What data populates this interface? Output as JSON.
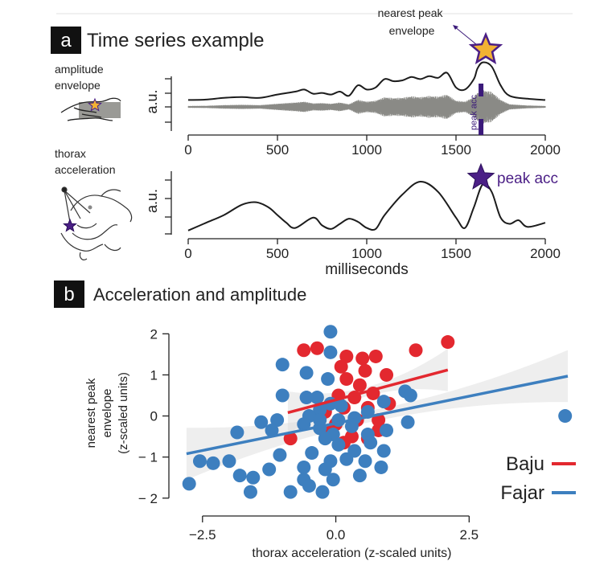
{
  "panel_a": {
    "letter": "a",
    "title": "Time series example",
    "left_label_1": "amplitude\nenvelope",
    "left_label_2": "thorax\nacceleration",
    "annotation_envelope": "nearest peak\nenvelope",
    "annotation_acc": "peak acc",
    "peak_acc_small": "peak acc",
    "ylabel_top": "a.u.",
    "ylabel_bottom": "a.u.",
    "xlabel": "milliseconds",
    "x_ticks": [
      "0",
      "500",
      "1000",
      "1500",
      "2000"
    ],
    "colors": {
      "signal": "#8a8a86",
      "envelope": "#1c1c1c",
      "acc_star": "#4b1f86",
      "env_star": "#f2b233",
      "peak_bar": "#3b1a7a"
    }
  },
  "panel_b": {
    "letter": "b",
    "title": "Acceleration and amplitude",
    "legend": [
      {
        "name": "Baju",
        "color": "#e3282f"
      },
      {
        "name": "Fajar",
        "color": "#3d7fbf"
      }
    ]
  },
  "chart_data": [
    {
      "type": "line",
      "panel": "a",
      "series": [
        {
          "name": "",
          "x": [
            0,
            100,
            200,
            300,
            400,
            500,
            600,
            650,
            700,
            750,
            800,
            850,
            900,
            950,
            1000,
            1050,
            1100,
            1150,
            1200,
            1250,
            1300,
            1350,
            1400,
            1450,
            1500,
            1550,
            1600,
            1620,
            1650,
            1700,
            1750,
            1800,
            1900,
            2000
          ],
          "y": [
            0.05,
            0.06,
            0.1,
            0.12,
            0.1,
            0.18,
            0.25,
            0.3,
            0.2,
            0.22,
            0.18,
            0.25,
            0.15,
            0.4,
            0.3,
            0.35,
            0.55,
            0.5,
            0.52,
            0.6,
            0.55,
            0.62,
            0.58,
            0.7,
            0.35,
            0.3,
            0.55,
            0.8,
            0.95,
            0.85,
            0.4,
            0.15,
            0.08,
            0.05
          ]
        }
      ],
      "xlabel": "",
      "ylabel": "a.u.",
      "xlim": [
        0,
        2000
      ],
      "x_ticks": [
        0,
        500,
        1000,
        1500,
        2000
      ]
    },
    {
      "type": "line",
      "panel": "a",
      "series": [
        {
          "name": "",
          "x": [
            0,
            100,
            200,
            300,
            380,
            450,
            500,
            550,
            600,
            700,
            750,
            800,
            850,
            900,
            950,
            1000,
            1050,
            1100,
            1200,
            1300,
            1400,
            1500,
            1550,
            1600,
            1650,
            1700,
            1750,
            1800,
            1850,
            1900,
            2000
          ],
          "y": [
            0.05,
            0.2,
            0.35,
            0.55,
            0.6,
            0.5,
            0.35,
            0.2,
            0.1,
            0.3,
            0.15,
            0.08,
            0.18,
            0.28,
            0.22,
            0.1,
            0.08,
            0.35,
            0.75,
            1.0,
            0.8,
            0.3,
            0.1,
            0.5,
            0.95,
            0.8,
            0.3,
            0.18,
            0.25,
            0.12,
            0.2
          ]
        }
      ],
      "xlabel": "milliseconds",
      "ylabel": "a.u.",
      "xlim": [
        0,
        2000
      ],
      "x_ticks": [
        0,
        500,
        1000,
        1500,
        2000
      ]
    },
    {
      "type": "scatter",
      "panel": "b",
      "xlabel": "thorax acceleration (z-scaled units)",
      "ylabel": "nearest peak\nenvelope\n(z-scaled units)",
      "xlim": [
        -3.1,
        4.35
      ],
      "ylim": [
        -2.2,
        2.3
      ],
      "x_ticks": [
        "−2.5",
        "0.0",
        "2.5"
      ],
      "x_tick_values": [
        -2.5,
        0.0,
        2.5
      ],
      "y_ticks": [
        "2",
        "1",
        "0",
        "− 1",
        "− 2"
      ],
      "y_tick_values": [
        2,
        1,
        0,
        -1,
        -2
      ],
      "series": [
        {
          "name": "Baju",
          "color": "#e3282f",
          "points": [
            [
              -0.6,
              1.6
            ],
            [
              -0.35,
              1.65
            ],
            [
              0.2,
              1.45
            ],
            [
              0.5,
              1.4
            ],
            [
              0.75,
              1.45
            ],
            [
              0.1,
              1.2
            ],
            [
              0.55,
              1.1
            ],
            [
              0.95,
              1.0
            ],
            [
              0.2,
              0.9
            ],
            [
              0.45,
              0.75
            ],
            [
              0.7,
              0.55
            ],
            [
              0.05,
              0.5
            ],
            [
              0.35,
              0.45
            ],
            [
              0.6,
              0.2
            ],
            [
              1.0,
              0.3
            ],
            [
              0.15,
              0.2
            ],
            [
              -0.2,
              0.1
            ],
            [
              0.4,
              -0.1
            ],
            [
              0.8,
              -0.35
            ],
            [
              -0.1,
              -0.4
            ],
            [
              0.3,
              -0.5
            ],
            [
              0.6,
              -0.55
            ],
            [
              0.15,
              -0.65
            ],
            [
              -0.85,
              -0.55
            ],
            [
              1.5,
              1.6
            ],
            [
              2.1,
              1.8
            ],
            [
              0.8,
              -0.1
            ],
            [
              0.0,
              -0.2
            ]
          ],
          "fit": {
            "x": [
              -0.9,
              2.1
            ],
            "y": [
              0.08,
              1.12
            ]
          }
        },
        {
          "name": "Fajar",
          "color": "#3d7fbf",
          "points": [
            [
              -0.1,
              2.05
            ],
            [
              -0.1,
              1.55
            ],
            [
              -1.0,
              1.25
            ],
            [
              -0.55,
              1.05
            ],
            [
              -0.15,
              0.9
            ],
            [
              -1.0,
              0.5
            ],
            [
              -0.35,
              0.45
            ],
            [
              -0.55,
              0.45
            ],
            [
              -0.1,
              0.3
            ],
            [
              0.1,
              0.25
            ],
            [
              -0.3,
              0.15
            ],
            [
              -0.5,
              0.0
            ],
            [
              -0.3,
              -0.1
            ],
            [
              0.05,
              -0.1
            ],
            [
              0.35,
              -0.05
            ],
            [
              0.6,
              0.1
            ],
            [
              0.9,
              0.35
            ],
            [
              1.3,
              0.6
            ],
            [
              1.4,
              0.5
            ],
            [
              -1.1,
              -0.1
            ],
            [
              -1.4,
              -0.15
            ],
            [
              -1.2,
              -0.35
            ],
            [
              -0.6,
              -0.2
            ],
            [
              -0.3,
              -0.3
            ],
            [
              -0.05,
              -0.45
            ],
            [
              0.3,
              -0.25
            ],
            [
              0.6,
              -0.45
            ],
            [
              0.95,
              -0.35
            ],
            [
              1.35,
              -0.15
            ],
            [
              -1.85,
              -0.4
            ],
            [
              -0.2,
              -0.55
            ],
            [
              0.05,
              -0.7
            ],
            [
              0.35,
              -0.85
            ],
            [
              0.65,
              -0.65
            ],
            [
              0.9,
              -0.85
            ],
            [
              -2.3,
              -1.15
            ],
            [
              -2.0,
              -1.1
            ],
            [
              -1.05,
              -0.95
            ],
            [
              -0.45,
              -0.9
            ],
            [
              -0.1,
              -1.1
            ],
            [
              0.2,
              -1.05
            ],
            [
              0.55,
              -1.1
            ],
            [
              0.85,
              -1.25
            ],
            [
              -0.6,
              -1.25
            ],
            [
              -0.2,
              -1.3
            ],
            [
              -1.55,
              -1.5
            ],
            [
              -1.25,
              -1.3
            ],
            [
              -0.6,
              -1.55
            ],
            [
              -0.5,
              -1.7
            ],
            [
              -0.25,
              -1.85
            ],
            [
              -0.85,
              -1.85
            ],
            [
              -1.6,
              -1.85
            ],
            [
              -2.75,
              -1.65
            ],
            [
              -2.55,
              -1.1
            ],
            [
              -1.8,
              -1.45
            ],
            [
              -0.05,
              -1.55
            ],
            [
              0.45,
              -1.45
            ],
            [
              4.3,
              0.0
            ]
          ],
          "fit": {
            "x": [
              -2.8,
              4.35
            ],
            "y": [
              -0.92,
              0.97
            ]
          }
        }
      ]
    }
  ]
}
